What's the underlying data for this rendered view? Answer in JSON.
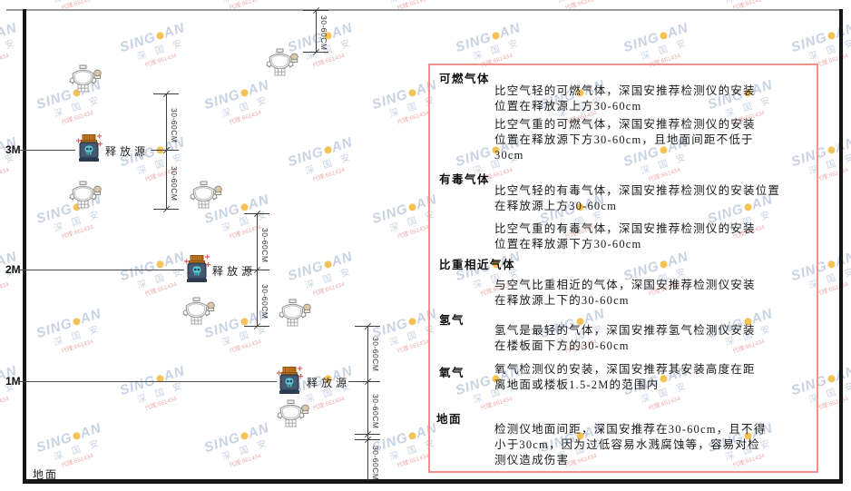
{
  "watermark": {
    "brand_prefix": "SING",
    "brand_suffix": "AN",
    "cn": "深 国 安",
    "sub": "代理:661434"
  },
  "diagram": {
    "height_labels": [
      "3M",
      "2M",
      "1M"
    ],
    "ground_label": "地面",
    "release_source_label": "释放源",
    "dim_label": "30-60CM"
  },
  "panel": {
    "sections": [
      {
        "heading": "可燃气体",
        "paragraphs": [
          [
            "比空气轻的可燃气体，深国安推荐检测仪的安装",
            "位置在释放源上方30-60cm"
          ],
          [
            "比空气重的可燃气体，深国安推荐检测仪的安装",
            "位置在释放源下方30-60cm，且地面间距不低于",
            "30cm"
          ]
        ]
      },
      {
        "heading": "有毒气体",
        "paragraphs": [
          [
            "比空气轻的有毒气体，深国安推荐检测仪的安装位置",
            "在释放源上方30-60cm"
          ],
          [
            "比空气重的有毒气体，深国安推荐检测仪的安装",
            "位置在释放源下方30-60cm"
          ]
        ]
      },
      {
        "heading": "比重相近气体",
        "paragraphs": [
          [
            "与空气比重相近的气体，深国安推荐检测仪安装",
            "在释放源上下的30-60cm"
          ]
        ]
      },
      {
        "heading": "氢气",
        "paragraphs": [
          [
            "氢气是最轻的气体，深国安推荐氢气检测仪安装",
            "在楼板面下方的30-60cm"
          ]
        ]
      },
      {
        "heading": "氧气",
        "paragraphs": [
          [
            "氧气检测仪的安装，深国安推荐其安装高度在距",
            "离地面或楼板1.5-2M的范围内"
          ]
        ]
      },
      {
        "heading": "地面",
        "paragraphs": [
          [
            "检测仪地面间距，深国安推荐在30-60cm，且不得",
            "小于30cm，因为过低容易水溅腐蚀等，容易对检",
            "测仪造成伤害"
          ]
        ]
      }
    ]
  },
  "colors": {
    "panel_border": "#f0918e",
    "frame_dark": "#161616",
    "ceiling_grey": "#9a9a9a",
    "dimension": "#3f3f3f",
    "watermark_blue": "#7a94bc",
    "watermark_dot": "#f2b32c",
    "watermark_red": "#d65050",
    "source_cap_orange": "#c97a20",
    "source_body_slate": "#3d4f66",
    "source_skull_teal": "#54c9d3",
    "detector_outline": "#8f8f8f",
    "detector_sensor_beige": "#dcc9a4",
    "sparkle_red": "#e2605e"
  }
}
